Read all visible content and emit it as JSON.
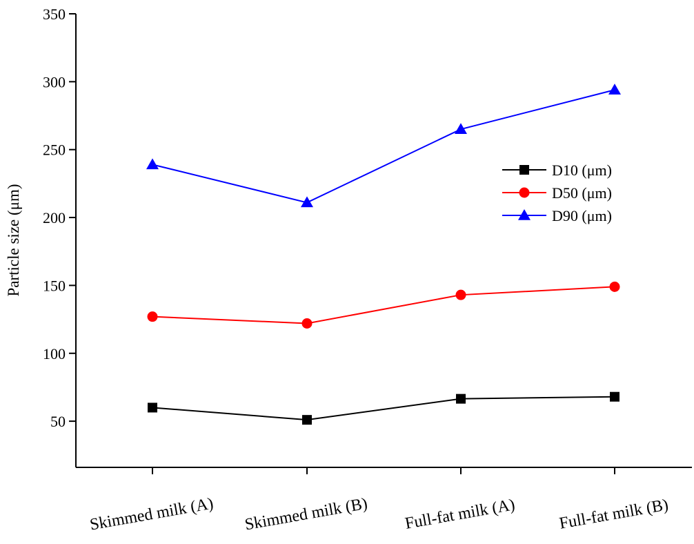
{
  "chart_data": {
    "type": "line",
    "title": "",
    "xlabel": "",
    "ylabel": "Particle size (μm)",
    "categories": [
      "Skimmed milk (A)",
      "Skimmed milk (B)",
      "Full-fat milk (A)",
      "Full-fat milk (B)"
    ],
    "ylim": [
      16,
      350
    ],
    "yticks": [
      50,
      100,
      150,
      200,
      250,
      300,
      350
    ],
    "grid": false,
    "legend_position": "right",
    "series": [
      {
        "name": "D10 (μm)",
        "values": [
          60,
          51,
          66.5,
          68
        ],
        "color": "#000000",
        "marker": "square"
      },
      {
        "name": "D50 (μm)",
        "values": [
          127,
          122,
          143,
          149
        ],
        "color": "#ff0000",
        "marker": "circle"
      },
      {
        "name": "D90 (μm)",
        "values": [
          239,
          211,
          265,
          294
        ],
        "color": "#0000ff",
        "marker": "triangle"
      }
    ]
  }
}
